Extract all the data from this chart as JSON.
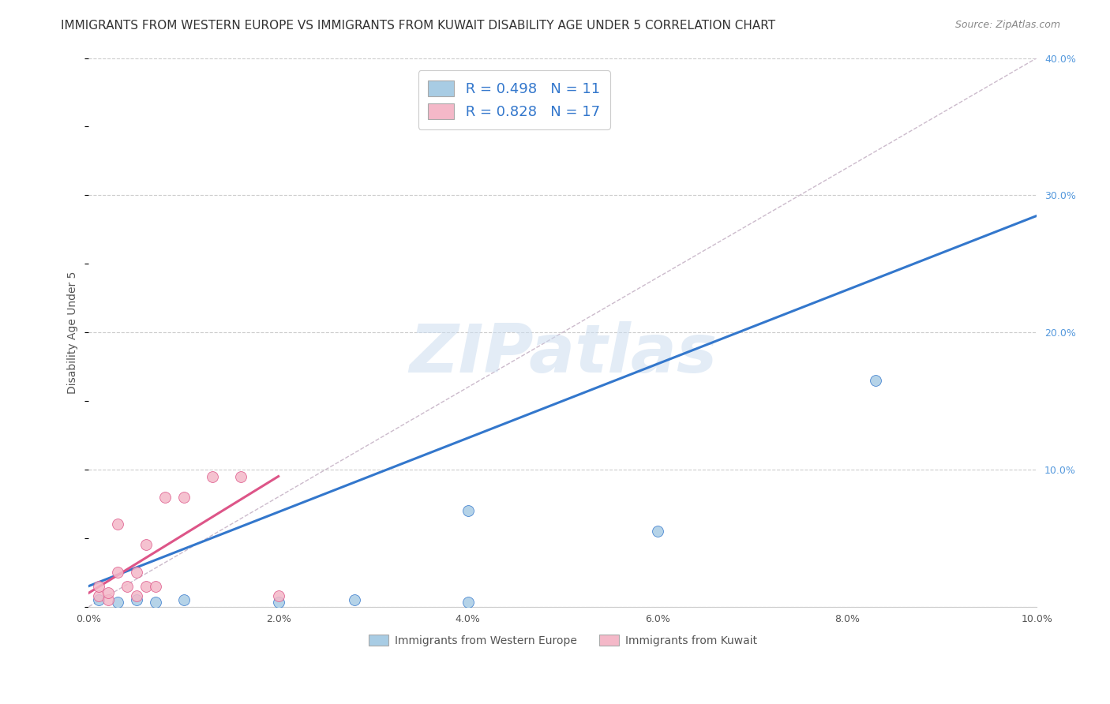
{
  "title": "IMMIGRANTS FROM WESTERN EUROPE VS IMMIGRANTS FROM KUWAIT DISABILITY AGE UNDER 5 CORRELATION CHART",
  "source": "Source: ZipAtlas.com",
  "ylabel": "Disability Age Under 5",
  "legend_label_blue": "Immigrants from Western Europe",
  "legend_label_pink": "Immigrants from Kuwait",
  "r_blue": "0.498",
  "n_blue": "11",
  "r_pink": "0.828",
  "n_pink": "17",
  "blue_color": "#a8cce4",
  "pink_color": "#f4b8c8",
  "regression_blue_color": "#3377cc",
  "regression_pink_color": "#dd5588",
  "diagonal_color": "#cccccc",
  "xlim": [
    0.0,
    0.1
  ],
  "ylim": [
    0.0,
    0.4
  ],
  "xticks": [
    0.0,
    0.02,
    0.04,
    0.06,
    0.08,
    0.1
  ],
  "xtick_labels": [
    "0.0%",
    "2.0%",
    "4.0%",
    "6.0%",
    "8.0%",
    "10.0%"
  ],
  "yticks_right": [
    0.0,
    0.1,
    0.2,
    0.3,
    0.4
  ],
  "ytick_labels_right": [
    "",
    "10.0%",
    "20.0%",
    "30.0%",
    "40.0%"
  ],
  "watermark": "ZIPatlas",
  "blue_scatter_x": [
    0.001,
    0.003,
    0.005,
    0.007,
    0.01,
    0.02,
    0.028,
    0.04,
    0.04,
    0.06,
    0.083
  ],
  "blue_scatter_y": [
    0.005,
    0.003,
    0.005,
    0.003,
    0.005,
    0.003,
    0.005,
    0.07,
    0.003,
    0.055,
    0.165
  ],
  "pink_scatter_x": [
    0.001,
    0.001,
    0.002,
    0.002,
    0.003,
    0.003,
    0.004,
    0.005,
    0.005,
    0.006,
    0.006,
    0.007,
    0.008,
    0.01,
    0.013,
    0.016,
    0.02
  ],
  "pink_scatter_y": [
    0.008,
    0.015,
    0.005,
    0.01,
    0.06,
    0.025,
    0.015,
    0.008,
    0.025,
    0.015,
    0.045,
    0.015,
    0.08,
    0.08,
    0.095,
    0.095,
    0.008
  ],
  "blue_line_x": [
    0.0,
    0.1
  ],
  "blue_line_y": [
    0.015,
    0.285
  ],
  "pink_line_x": [
    0.0,
    0.02
  ],
  "pink_line_y": [
    0.01,
    0.095
  ],
  "diagonal_line_x": [
    0.0,
    0.1
  ],
  "diagonal_line_y": [
    0.0,
    0.4
  ],
  "marker_size": 100,
  "title_fontsize": 11,
  "axis_label_fontsize": 10,
  "tick_fontsize": 9,
  "legend_fontsize": 13
}
